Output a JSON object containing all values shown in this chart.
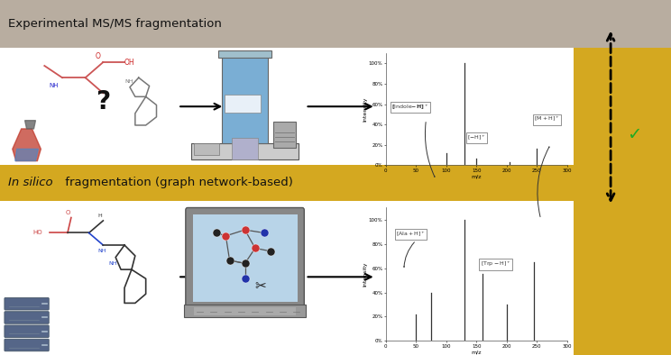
{
  "bg_color": "#ffffff",
  "header1_color": "#b8ada0",
  "header2_color": "#d4a820",
  "header1_text": "Experimental MS/MS fragmentation",
  "ms1_peaks_x": [
    100,
    130,
    150,
    205,
    250
  ],
  "ms1_peaks_y": [
    12,
    100,
    6,
    3,
    16
  ],
  "ms2_peaks_x": [
    50,
    75,
    130,
    160,
    200,
    245
  ],
  "ms2_peaks_y": [
    22,
    40,
    100,
    55,
    30,
    65
  ],
  "peak_color": "#333333",
  "xlabel": "m/z",
  "ylabel": "Intensity",
  "xlim": [
    0,
    300
  ],
  "ylim": [
    0,
    110
  ],
  "yticks": [
    0,
    20,
    40,
    60,
    80,
    100
  ],
  "ytick_labels": [
    "0%",
    "20%",
    "40%",
    "60%",
    "80%",
    "100%"
  ],
  "xticks": [
    0,
    50,
    100,
    150,
    200,
    250,
    300
  ],
  "axis_color": "#555555",
  "checkmark_color": "#22aa22",
  "yellow_color": "#d4a820",
  "fig_width": 7.44,
  "fig_height": 3.94,
  "dpi": 100
}
